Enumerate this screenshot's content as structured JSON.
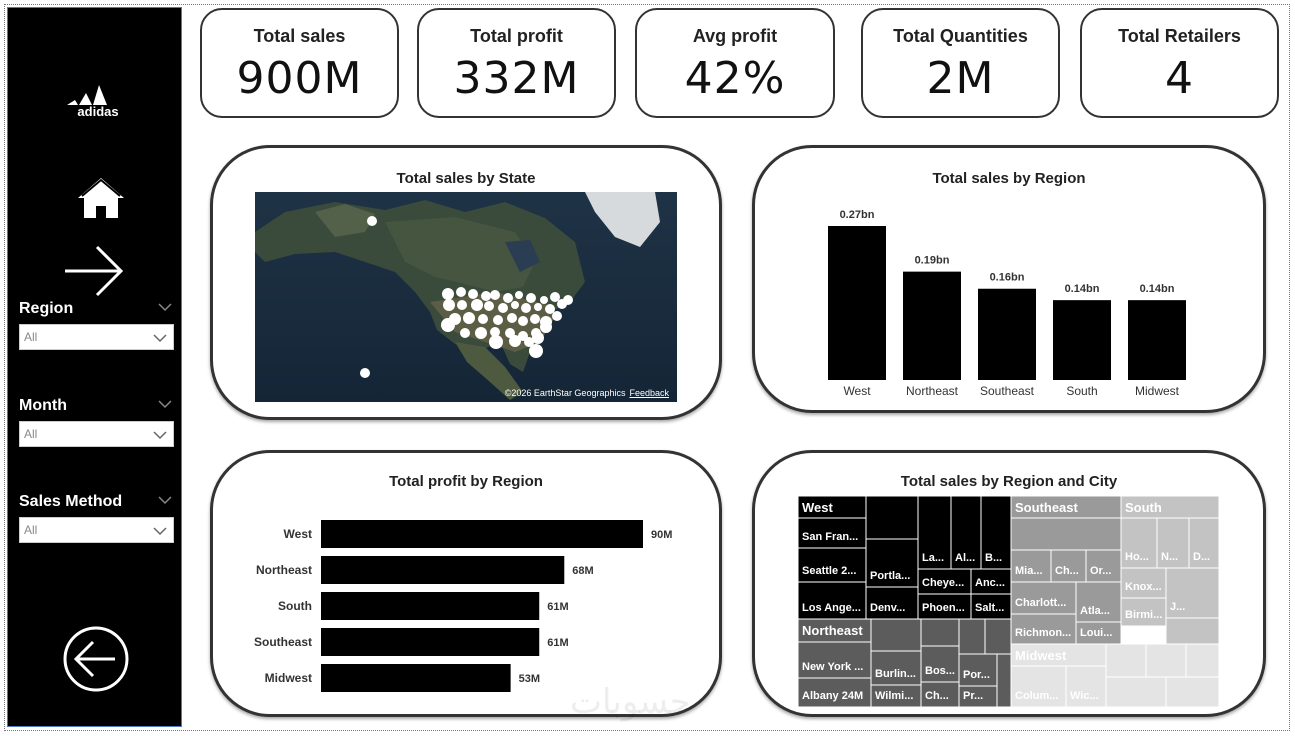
{
  "kpis": [
    {
      "title": "Total sales",
      "value": "900M"
    },
    {
      "title": "Total profit",
      "value": "332M"
    },
    {
      "title": "Avg profit",
      "value": "42%"
    },
    {
      "title": "Total Quantities",
      "value": "2M"
    },
    {
      "title": "Total Retailers",
      "value": "4"
    }
  ],
  "sidebar": {
    "logo": "adidas",
    "filters": [
      {
        "label": "Region",
        "value": "All"
      },
      {
        "label": "Month",
        "value": "All"
      },
      {
        "label": "Sales Method",
        "value": "All"
      }
    ],
    "icons": [
      "home-icon",
      "arrow-right-icon",
      "arrow-left-circle-icon"
    ]
  },
  "map": {
    "title": "Total sales by State",
    "attribution": "©2026 EarthStar Geographics",
    "feedback": "Feedback"
  },
  "colors": {
    "bar": "#000000",
    "card_border": "#333333",
    "sidebar": "#000000"
  },
  "chart_data": [
    {
      "type": "bar",
      "title": "Total sales by Region",
      "categories": [
        "West",
        "Northeast",
        "Southeast",
        "South",
        "Midwest"
      ],
      "values": [
        0.27,
        0.19,
        0.16,
        0.14,
        0.14
      ],
      "labels": [
        "0.27bn",
        "0.19bn",
        "0.16bn",
        "0.14bn",
        "0.14bn"
      ],
      "ylim": [
        0,
        0.27
      ]
    },
    {
      "type": "bar",
      "orientation": "horizontal",
      "title": "Total profit by Region",
      "categories": [
        "West",
        "Northeast",
        "South",
        "Southeast",
        "Midwest"
      ],
      "values": [
        90,
        68,
        61,
        61,
        53
      ],
      "labels": [
        "90M",
        "68M",
        "61M",
        "61M",
        "53M"
      ],
      "xlim": [
        0,
        90
      ]
    },
    {
      "type": "treemap",
      "title": "Total sales by Region and City",
      "regions": [
        {
          "name": "West",
          "cities": [
            "San Fran...",
            "Seattle 2...",
            "Los Ange...",
            "Portla...",
            "Denv...",
            "La...",
            "Al...",
            "B...",
            "Cheye...",
            "Anc...",
            "Phoen...",
            "Salt..."
          ]
        },
        {
          "name": "Northeast",
          "cities": [
            "New York ...",
            "Albany 24M",
            "Burlin...",
            "Wilmi...",
            "Bos...",
            "Ch...",
            "Por...",
            "Pr..."
          ]
        },
        {
          "name": "Southeast",
          "cities": [
            "Mia...",
            "Ch...",
            "Or...",
            "Charlott...",
            "Atla...",
            "Richmon...",
            "Loui..."
          ]
        },
        {
          "name": "South",
          "cities": [
            "Ho...",
            "N...",
            "D...",
            "Knox...",
            "J...",
            "Birmi..."
          ]
        },
        {
          "name": "Midwest",
          "cities": [
            "Colum...",
            "Wic..."
          ]
        }
      ]
    }
  ],
  "watermark": "حسوبات"
}
